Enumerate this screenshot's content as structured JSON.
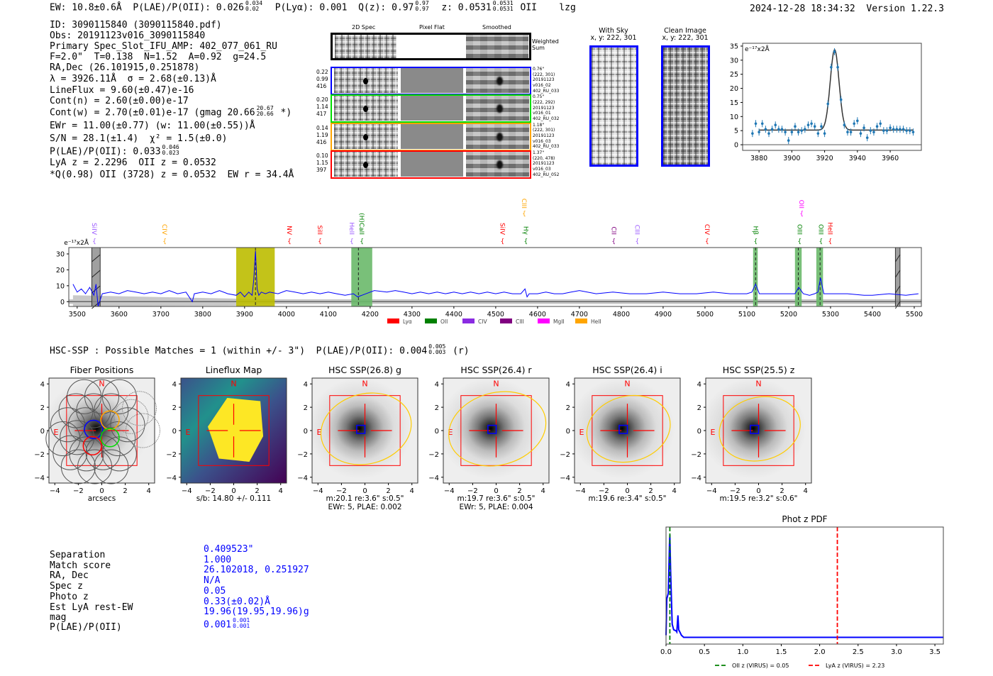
{
  "header": {
    "ew": "EW: 10.8±0.6Å",
    "plae": "P(LAE)/P(OII): 0.026",
    "plae_hi": "0.034",
    "plae_lo": "0.02",
    "plya": "P(Lyα): 0.001",
    "qz": "Q(z): 0.97",
    "qz_hi": "0.97",
    "qz_lo": "0.97",
    "z": "z: 0.0531",
    "z_hi": "0.0531",
    "z_lo": "0.0531",
    "line": "OII",
    "tag": "lzg",
    "timestamp": "2024-12-28 18:34:32",
    "version": "Version 1.22.3"
  },
  "info": {
    "lines": [
      "ID: 3090115840 (3090115840.pdf)",
      "Obs: 20191123v016_3090115840",
      "Primary Spec_Slot_IFU_AMP: 402_077_061_RU",
      "F=2.0\"  T=0.138  N=1.52  A=0.92  g=24.5",
      "RA,Dec (26.101915,0.251878)",
      "λ = 3926.11Å  σ = 2.68(±0.13)Å",
      "LineFlux = 9.60(±0.47)e-16",
      "Cont(n) = 2.60(±0.00)e-17"
    ],
    "cont_w": "Cont(w) = 2.70(±0.01)e-17 (gmag 20.66",
    "cont_w_hi": "20.67",
    "cont_w_lo": "20.66",
    "cont_w_tail": " *)",
    "ewr": "EWr = 11.00(±0.77) (w: 11.00(±0.55))Å",
    "sn": "S/N = 28.1(±1.4)  χ² = 1.5(±0.0)",
    "plae": "P(LAE)/P(OII): 0.033",
    "plae_hi": "0.046",
    "plae_lo": "0.023",
    "z_line": "LyA z = 2.2296  OII z = 0.0532",
    "q_line": "*Q(0.98) OII (3728) z = 0.0532  EW r = 34.4Å"
  },
  "spec2d": {
    "headers": [
      "2D Spec",
      "Pixel Flat",
      "Smoothed"
    ],
    "weighted_label": "Weighted\nSum",
    "rows": [
      {
        "color": "#0000ff",
        "left": "0.22\n0.99\n416",
        "right": "0.76\"\n(222, 301)\n20191123\nv016_02\n402_RU_033"
      },
      {
        "color": "#00dd00",
        "left": "0.20\n1.14\n417",
        "right": "0.75\"\n(222, 292)\n20191123\nv016_01\n402_RU_032"
      },
      {
        "color": "#ffa500",
        "left": "0.14\n1.19\n416",
        "right": "1.18\"\n(222, 301)\n20191123\nv016_03\n402_RU_033"
      },
      {
        "color": "#ff0000",
        "left": "0.10\n1.15\n397",
        "right": "1.37\"\n(220, 478)\n20191123\nv016_03\n402_RU_052"
      }
    ]
  },
  "cutouts": {
    "with_sky": "With Sky\nx, y: 222, 301",
    "clean": "Clean Image\nx, y: 222, 301"
  },
  "hsc": {
    "title": "HSC-SSP : Possible Matches = 1 (within +/- 3\")  P(LAE)/P(OII): 0.004",
    "plae_hi": "0.005",
    "plae_lo": "0.003",
    "band": "(r)",
    "compass_n": "N",
    "compass_e": "E",
    "panels": [
      {
        "title": "Fiber Positions",
        "caption": "arcsecs",
        "caption2": ""
      },
      {
        "title": "Lineflux Map",
        "caption": "s/b: 14.80 +/- 0.111",
        "caption2": ""
      },
      {
        "title": "HSC SSP(26.8) g",
        "caption": "m:20.1  re:3.6\"  s:0.5\"",
        "caption2": "EWr: 5, PLAE: 0.002"
      },
      {
        "title": "HSC SSP(26.4) r",
        "caption": "m:19.7  re:3.6\"  s:0.5\"",
        "caption2": "EWr: 5, PLAE: 0.004"
      },
      {
        "title": "HSC SSP(26.4) i",
        "caption": "m:19.6  re:3.4\"  s:0.5\"",
        "caption2": ""
      },
      {
        "title": "HSC SSP(25.5) z",
        "caption": "m:19.5  re:3.2\"  s:0.6\"",
        "caption2": ""
      }
    ],
    "ticks": [
      "−4",
      "−2",
      "0",
      "2",
      "4"
    ]
  },
  "match": {
    "rows": [
      {
        "label": "Separation",
        "value": "0.409523\""
      },
      {
        "label": "Match score",
        "value": "1.000"
      },
      {
        "label": "RA, Dec",
        "value": "26.102018, 0.251927"
      },
      {
        "label": "Spec z",
        "value": "N/A"
      },
      {
        "label": "Photo z",
        "value": "0.05"
      },
      {
        "label": "Est LyA rest-EW",
        "value": "0.33(±0.02)Å"
      },
      {
        "label": "mag",
        "value": "19.96(19.95,19.96)g"
      }
    ],
    "plae_label": "P(LAE)/P(OII)",
    "plae_value": "0.001",
    "plae_hi": "0.001",
    "plae_lo": "0.001",
    "value_color": "#0000ff"
  },
  "chart_data": [
    {
      "type": "scatter",
      "name": "line-fit",
      "ylabel": "e⁻¹⁷x2Å",
      "xlim": [
        3870,
        3979
      ],
      "ylim": [
        -2,
        36
      ],
      "xticks": [
        3880,
        3900,
        3920,
        3940,
        3960
      ],
      "yticks": [
        0,
        5,
        10,
        15,
        20,
        25,
        30,
        35
      ],
      "x": [
        3876,
        3878,
        3880,
        3882,
        3884,
        3886,
        3888,
        3890,
        3892,
        3894,
        3896,
        3898,
        3900,
        3902,
        3904,
        3906,
        3908,
        3910,
        3912,
        3914,
        3916,
        3918,
        3920,
        3922,
        3924,
        3926,
        3928,
        3930,
        3932,
        3934,
        3936,
        3938,
        3940,
        3942,
        3944,
        3946,
        3948,
        3950,
        3952,
        3954,
        3956,
        3958,
        3960,
        3962,
        3964,
        3966,
        3968,
        3970,
        3972,
        3974
      ],
      "y": [
        4,
        7.5,
        4.5,
        7.5,
        5.5,
        4,
        5.5,
        7,
        5.5,
        5.5,
        4.5,
        1.5,
        4.5,
        6.5,
        4.5,
        5,
        5.5,
        7,
        7.5,
        6.5,
        4,
        6.5,
        4,
        14.5,
        27.5,
        33,
        27.5,
        16,
        7,
        4.5,
        4.5,
        7.5,
        8.5,
        4,
        6,
        2.5,
        5,
        4.5,
        6.5,
        7.5,
        5,
        5,
        6,
        5.5,
        5.5,
        5.5,
        5.5,
        5,
        5,
        4.5
      ],
      "fit": {
        "center": 3926.11,
        "sigma": 2.68,
        "continuum": 5.2,
        "amplitude": 28.5,
        "range": [
          3880,
          3974
        ]
      },
      "point_color": "#1f77b4"
    },
    {
      "type": "line",
      "name": "full-spectrum",
      "ylabel": "e⁻¹⁷x2Å",
      "xlim": [
        3480,
        5517
      ],
      "ylim": [
        -3,
        34
      ],
      "xticks": [
        3500,
        3600,
        3700,
        3800,
        3900,
        4000,
        4100,
        4200,
        4300,
        4400,
        4500,
        4600,
        4700,
        4800,
        4900,
        5000,
        5100,
        5200,
        5300,
        5400,
        5500
      ],
      "yticks": [
        0,
        10,
        20,
        30
      ],
      "x": [
        3490,
        3500,
        3510,
        3520,
        3530,
        3540,
        3545,
        3550,
        3560,
        3580,
        3600,
        3620,
        3640,
        3660,
        3680,
        3700,
        3720,
        3740,
        3760,
        3775,
        3780,
        3800,
        3820,
        3840,
        3860,
        3880,
        3890,
        3900,
        3910,
        3918,
        3922,
        3926,
        3930,
        3934,
        3940,
        3950,
        3960,
        3980,
        4000,
        4020,
        4040,
        4060,
        4080,
        4100,
        4120,
        4140,
        4160,
        4170,
        4180,
        4200,
        4210,
        4240,
        4260,
        4280,
        4300,
        4320,
        4340,
        4360,
        4380,
        4400,
        4420,
        4440,
        4460,
        4480,
        4500,
        4520,
        4540,
        4560,
        4570,
        4575,
        4580,
        4600,
        4620,
        4640,
        4660,
        4680,
        4700,
        4740,
        4780,
        4820,
        4860,
        4900,
        4940,
        4980,
        5020,
        5060,
        5100,
        5112,
        5121,
        5130,
        5160,
        5200,
        5215,
        5224,
        5235,
        5250,
        5262,
        5270,
        5276,
        5284,
        5300,
        5340,
        5380,
        5400,
        5440,
        5480,
        5510
      ],
      "y": [
        11,
        6,
        8,
        5,
        9,
        4,
        11,
        -3,
        5,
        6,
        5,
        7,
        6,
        5,
        6,
        5,
        7,
        5,
        6,
        0,
        5,
        6,
        5,
        7,
        5,
        4,
        6,
        3,
        6,
        4,
        14,
        32,
        8,
        4,
        6,
        5,
        6,
        5,
        7,
        6,
        5,
        6,
        5,
        6,
        5,
        4,
        5,
        3,
        4,
        6,
        7,
        6,
        7,
        6,
        5,
        6,
        5,
        6,
        5,
        6,
        5,
        6,
        5,
        6,
        5,
        6,
        5,
        5,
        8,
        3,
        5,
        5,
        6,
        5,
        5,
        6,
        7,
        5,
        6,
        5,
        5,
        6,
        5,
        5,
        6,
        5,
        5,
        6,
        11,
        5,
        5,
        5,
        5,
        9,
        5,
        4,
        5,
        6,
        15,
        5,
        5,
        5,
        4,
        4,
        5,
        4,
        5
      ],
      "series_color": "#0000ff",
      "shaded": [
        {
          "range": [
            3535,
            3555
          ],
          "color": "#888888",
          "hatched": true
        },
        {
          "range": [
            5455,
            5466
          ],
          "color": "#888888",
          "hatched": true
        },
        {
          "range": [
            3880,
            3972
          ],
          "color": "#bdbd00"
        },
        {
          "range": [
            4155,
            4205
          ],
          "color": "#6ab96a"
        },
        {
          "range": [
            5115,
            5126
          ],
          "color": "#6ab96a"
        },
        {
          "range": [
            5215,
            5231
          ],
          "color": "#6ab96a"
        },
        {
          "range": [
            5266,
            5282
          ],
          "color": "#6ab96a"
        }
      ],
      "dashed_lines": [
        3926,
        4172,
        5121,
        5223,
        5275
      ],
      "line_labels": [
        {
          "text": "SiIV",
          "wave": 3541,
          "color": "#9b59ff",
          "row": "low"
        },
        {
          "text": "CIV",
          "wave": 3709,
          "color": "#ffa500",
          "row": "low"
        },
        {
          "text": "NV",
          "wave": 4007,
          "color": "#ff0000",
          "row": "low"
        },
        {
          "text": "SiII",
          "wave": 4080,
          "color": "#ff0000",
          "row": "low"
        },
        {
          "text": "HeII",
          "wave": 4156,
          "color": "#9b59ff",
          "row": "low"
        },
        {
          "text": "(H)CaII",
          "wave": 4180,
          "color": "#008000",
          "row": "low"
        },
        {
          "text": "SiIV",
          "wave": 4516,
          "color": "#ff0000",
          "row": "low"
        },
        {
          "text": "CIII",
          "wave": 4568,
          "color": "#ffa500",
          "row": "high"
        },
        {
          "text": "Hγ",
          "wave": 4572,
          "color": "#008000",
          "row": "low"
        },
        {
          "text": "CII",
          "wave": 4782,
          "color": "#800080",
          "row": "low"
        },
        {
          "text": "CIII",
          "wave": 4838,
          "color": "#9b59ff",
          "row": "low"
        },
        {
          "text": "CIV",
          "wave": 5005,
          "color": "#ff0000",
          "row": "low"
        },
        {
          "text": "Hβ",
          "wave": 5121,
          "color": "#008000",
          "row": "low"
        },
        {
          "text": "OII",
          "wave": 5231,
          "color": "#ff00ff",
          "row": "high"
        },
        {
          "text": "OIII",
          "wave": 5226,
          "color": "#008000",
          "row": "low"
        },
        {
          "text": "OIII",
          "wave": 5277,
          "color": "#008000",
          "row": "low"
        },
        {
          "text": "HeII",
          "wave": 5299,
          "color": "#ff0000",
          "row": "low"
        }
      ],
      "legend": [
        {
          "label": "Lyα",
          "color": "#ff0000"
        },
        {
          "label": "OII",
          "color": "#008000"
        },
        {
          "label": "CIV",
          "color": "#8a2be2"
        },
        {
          "label": "CIII",
          "color": "#800080"
        },
        {
          "label": "MgII",
          "color": "#ff00ff"
        },
        {
          "label": "HeII",
          "color": "#ffa500"
        }
      ],
      "legend_position": "bottom-center"
    },
    {
      "type": "line",
      "name": "phot-z-pdf",
      "title": "Phot z PDF",
      "xlim": [
        0,
        3.61
      ],
      "ylim": [
        -0.06,
        1.0
      ],
      "xticks": [
        0.0,
        0.5,
        1.0,
        1.5,
        2.0,
        2.5,
        3.0,
        3.5
      ],
      "x": [
        0,
        0.01,
        0.03,
        0.045,
        0.05,
        0.06,
        0.08,
        0.1,
        0.13,
        0.14,
        0.155,
        0.165,
        0.18,
        0.2,
        0.23,
        3.61
      ],
      "y": [
        0.02,
        0.35,
        0.4,
        0.85,
        0.93,
        0.6,
        0.12,
        0.07,
        0.06,
        0.05,
        0.2,
        0.07,
        0.05,
        0.02,
        0.001,
        0.001
      ],
      "series_color": "#0000ff",
      "vlines": [
        {
          "x": 0.05,
          "color": "#008000",
          "label": "OII z (VIRUS) = 0.05"
        },
        {
          "x": 2.23,
          "color": "#ff0000",
          "label": "LyA z (VIRUS) = 2.23"
        }
      ],
      "legend_position": "bottom-center"
    }
  ]
}
